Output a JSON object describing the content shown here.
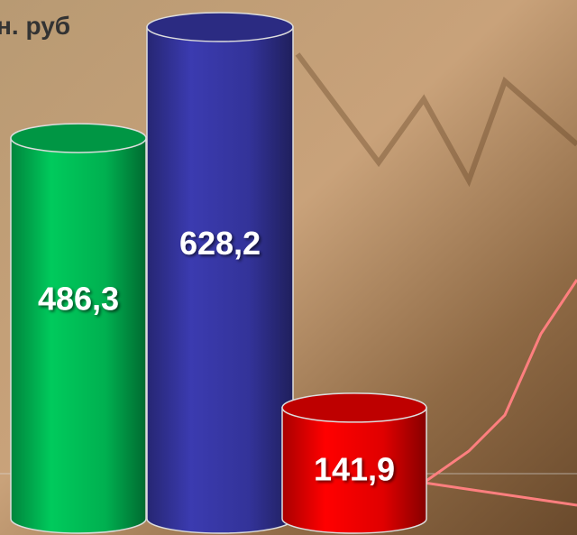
{
  "chart_data": {
    "type": "cylinder",
    "title": "н. руб",
    "values": [
      486.3,
      628.2,
      141.9
    ],
    "value_labels": [
      "486,3",
      "628,2",
      "141,9"
    ],
    "colors": [
      "#00b050",
      "#333399",
      "#e00000"
    ]
  }
}
